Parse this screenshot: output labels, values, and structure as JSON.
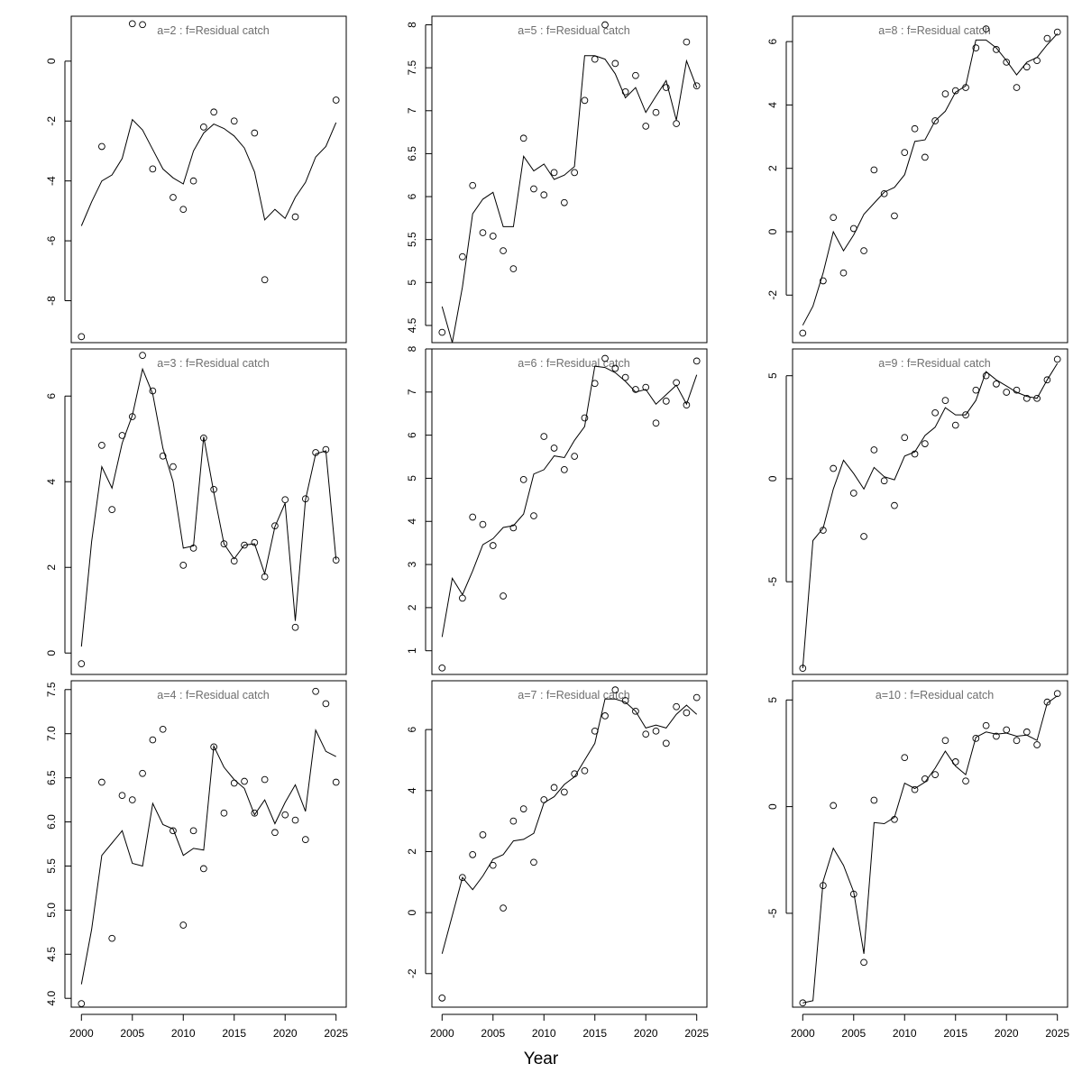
{
  "chart_data": {
    "type": "scatter+line",
    "layout": "3 columns x 3 rows",
    "xlabel": "Year",
    "x_ticks": [
      2000,
      2005,
      2010,
      2015,
      2020,
      2025
    ],
    "xlim": [
      1999,
      2026
    ],
    "x": [
      2000,
      2001,
      2002,
      2003,
      2004,
      2005,
      2006,
      2007,
      2008,
      2009,
      2010,
      2011,
      2012,
      2013,
      2014,
      2015,
      2016,
      2017,
      2018,
      2019,
      2020,
      2021,
      2022,
      2023,
      2024,
      2025
    ],
    "panels": [
      {
        "title": "a=2  :  f=Residual catch",
        "ylim": [
          -9.4,
          1.5
        ],
        "y_ticks": [
          0,
          -2,
          -4,
          -6,
          -8
        ],
        "observed": [
          -9.2,
          null,
          -2.85,
          null,
          null,
          1.25,
          1.22,
          -3.6,
          null,
          -4.55,
          -4.95,
          -4.0,
          -2.2,
          -1.7,
          null,
          -2.0,
          null,
          -2.4,
          -7.3,
          null,
          null,
          -5.2,
          null,
          null,
          null,
          -1.3
        ],
        "fitted": [
          -5.5,
          -4.7,
          -4.0,
          -3.8,
          -3.25,
          -1.95,
          -2.3,
          -2.95,
          -3.6,
          -3.9,
          -4.1,
          -3.0,
          -2.4,
          -2.1,
          -2.25,
          -2.5,
          -2.9,
          -3.7,
          -5.3,
          -4.95,
          -5.25,
          -4.55,
          -4.05,
          -3.2,
          -2.85,
          -2.05
        ]
      },
      {
        "title": "a=5  :  f=Residual catch",
        "ylim": [
          4.3,
          8.1
        ],
        "y_ticks": [
          4.5,
          5.0,
          5.5,
          6.0,
          6.5,
          7.0,
          7.5,
          8.0
        ],
        "observed": [
          4.42,
          null,
          5.3,
          6.13,
          5.58,
          5.54,
          5.37,
          5.16,
          6.68,
          6.09,
          6.02,
          6.28,
          5.93,
          6.28,
          7.12,
          7.6,
          8.0,
          7.55,
          7.22,
          7.41,
          6.82,
          6.98,
          7.27,
          6.85,
          7.8,
          7.29
        ],
        "fitted": [
          4.72,
          4.3,
          4.95,
          5.8,
          5.97,
          6.05,
          5.65,
          5.65,
          6.47,
          6.3,
          6.38,
          6.2,
          6.25,
          6.35,
          7.64,
          7.64,
          7.6,
          7.43,
          7.15,
          7.27,
          6.98,
          7.17,
          7.35,
          6.89,
          7.58,
          7.27
        ]
      },
      {
        "title": "a=8  :  f=Residual catch",
        "ylim": [
          -3.5,
          6.8
        ],
        "y_ticks": [
          -2,
          0,
          2,
          4,
          6
        ],
        "observed": [
          -3.2,
          null,
          -1.55,
          0.45,
          -1.3,
          0.1,
          -0.6,
          1.95,
          1.2,
          0.5,
          2.5,
          3.25,
          2.35,
          3.5,
          4.35,
          4.45,
          4.55,
          5.8,
          6.4,
          5.75,
          5.35,
          4.55,
          5.2,
          5.4,
          6.1,
          6.3
        ],
        "fitted": [
          -2.95,
          -2.35,
          -1.3,
          0.0,
          -0.6,
          -0.1,
          0.55,
          0.9,
          1.25,
          1.4,
          1.8,
          2.85,
          2.9,
          3.5,
          3.8,
          4.4,
          4.6,
          6.05,
          6.05,
          5.8,
          5.4,
          4.95,
          5.35,
          5.5,
          5.9,
          6.25
        ]
      },
      {
        "title": "a=3  :  f=Residual catch",
        "ylim": [
          -0.5,
          7.1
        ],
        "y_ticks": [
          0,
          2,
          4,
          6
        ],
        "observed": [
          -0.25,
          null,
          4.85,
          3.35,
          5.08,
          5.52,
          6.95,
          6.12,
          4.6,
          4.35,
          2.05,
          2.45,
          5.02,
          3.82,
          2.55,
          2.15,
          2.52,
          2.58,
          1.78,
          2.97,
          3.58,
          0.6,
          3.6,
          4.68,
          4.75,
          2.17
        ],
        "fitted": [
          0.15,
          2.6,
          4.35,
          3.85,
          4.9,
          5.55,
          6.63,
          6.05,
          4.78,
          4.0,
          2.45,
          2.5,
          5.05,
          3.75,
          2.55,
          2.2,
          2.52,
          2.55,
          1.85,
          2.95,
          3.5,
          0.75,
          3.58,
          4.65,
          4.72,
          2.18
        ]
      },
      {
        "title": "a=6  :  f=Residual catch",
        "ylim": [
          0.45,
          8.0
        ],
        "y_ticks": [
          1,
          2,
          3,
          4,
          5,
          6,
          7,
          8
        ],
        "observed": [
          0.6,
          null,
          2.22,
          4.1,
          3.93,
          3.44,
          2.27,
          3.85,
          4.97,
          4.13,
          5.97,
          5.7,
          5.2,
          5.51,
          6.4,
          7.2,
          7.78,
          7.55,
          7.34,
          7.06,
          7.11,
          6.28,
          6.79,
          7.22,
          6.7,
          7.72
        ],
        "fitted": [
          1.32,
          2.68,
          2.3,
          2.85,
          3.46,
          3.6,
          3.86,
          3.9,
          4.17,
          5.1,
          5.2,
          5.52,
          5.48,
          5.88,
          6.2,
          7.6,
          7.57,
          7.45,
          7.25,
          7.0,
          7.06,
          6.72,
          6.94,
          7.16,
          6.72,
          7.4
        ]
      },
      {
        "title": "a=9  :  f=Residual catch",
        "ylim": [
          -9.5,
          6.3
        ],
        "y_ticks": [
          -5,
          0,
          5
        ],
        "observed": [
          -9.2,
          null,
          -2.5,
          0.5,
          null,
          -0.7,
          -2.8,
          1.4,
          -0.1,
          -1.3,
          2.0,
          1.2,
          1.7,
          3.2,
          3.8,
          2.6,
          3.1,
          4.3,
          5.0,
          4.6,
          4.2,
          4.3,
          3.9,
          3.9,
          4.8,
          5.8
        ],
        "fitted": [
          -9.2,
          -3.0,
          -2.4,
          -0.5,
          0.9,
          0.25,
          -0.5,
          0.55,
          0.1,
          -0.05,
          1.1,
          1.3,
          2.1,
          2.5,
          3.45,
          3.1,
          3.1,
          3.8,
          5.2,
          4.8,
          4.5,
          4.2,
          4.0,
          3.9,
          4.8,
          5.6
        ]
      },
      {
        "title": "a=4  :  f=Residual catch",
        "ylim": [
          3.9,
          7.6
        ],
        "y_ticks": [
          4.0,
          4.5,
          5.0,
          5.5,
          6.0,
          6.5,
          7.0,
          7.5
        ],
        "observed": [
          3.94,
          null,
          6.45,
          4.68,
          6.3,
          6.25,
          6.55,
          6.93,
          7.05,
          5.9,
          4.83,
          5.9,
          5.47,
          6.85,
          6.1,
          6.44,
          6.46,
          6.1,
          6.48,
          5.88,
          6.08,
          6.02,
          5.8,
          7.48,
          7.34,
          6.45
        ],
        "fitted": [
          4.16,
          4.78,
          5.62,
          5.76,
          5.9,
          5.53,
          5.5,
          6.21,
          5.97,
          5.92,
          5.62,
          5.7,
          5.68,
          6.86,
          6.62,
          6.48,
          6.38,
          6.08,
          6.25,
          5.98,
          6.22,
          6.42,
          6.12,
          7.04,
          6.8,
          6.74
        ]
      },
      {
        "title": "a=7  :  f=Residual catch",
        "ylim": [
          -3.1,
          7.6
        ],
        "y_ticks": [
          -2,
          0,
          2,
          4,
          6
        ],
        "observed": [
          -2.8,
          null,
          1.15,
          1.9,
          2.55,
          1.55,
          0.15,
          3.0,
          3.4,
          1.65,
          3.7,
          4.1,
          3.95,
          4.55,
          4.65,
          5.95,
          6.45,
          7.3,
          6.95,
          6.6,
          5.85,
          5.95,
          5.55,
          6.75,
          6.55,
          7.05
        ],
        "fitted": [
          -1.35,
          -0.1,
          1.15,
          0.75,
          1.2,
          1.75,
          1.9,
          2.35,
          2.4,
          2.6,
          3.6,
          3.8,
          4.2,
          4.45,
          5.0,
          5.55,
          7.0,
          7.0,
          6.9,
          6.6,
          6.05,
          6.15,
          6.05,
          6.5,
          6.8,
          6.5
        ]
      },
      {
        "title": "a=10  :  f=Residual catch",
        "ylim": [
          -9.4,
          5.9
        ],
        "y_ticks": [
          -5,
          0,
          5
        ],
        "observed": [
          -9.2,
          null,
          -3.7,
          0.05,
          null,
          -4.1,
          -7.3,
          0.3,
          null,
          -0.6,
          2.3,
          0.8,
          1.3,
          1.5,
          3.1,
          2.1,
          1.2,
          3.2,
          3.8,
          3.3,
          3.6,
          3.1,
          3.5,
          2.9,
          4.9,
          5.3
        ],
        "fitted": [
          -9.2,
          -9.1,
          -3.5,
          -1.95,
          -2.75,
          -4.0,
          -6.9,
          -0.75,
          -0.8,
          -0.5,
          1.1,
          0.85,
          1.15,
          1.8,
          2.6,
          1.9,
          1.5,
          3.25,
          3.5,
          3.4,
          3.45,
          3.3,
          3.35,
          3.1,
          4.85,
          5.2
        ]
      }
    ]
  }
}
